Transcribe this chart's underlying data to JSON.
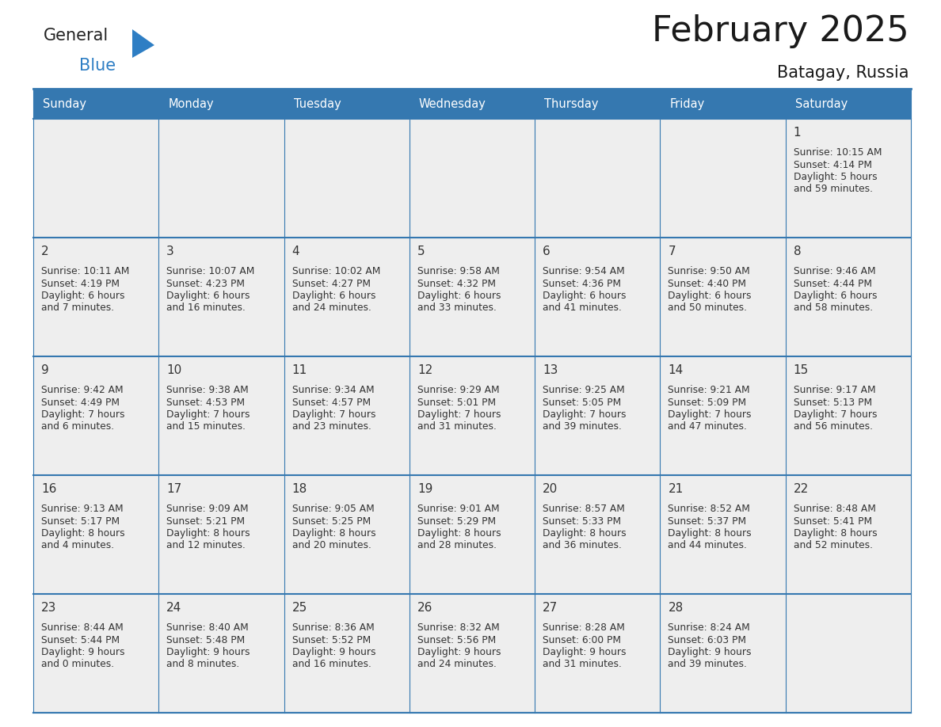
{
  "title": "February 2025",
  "subtitle": "Batagay, Russia",
  "header_color": "#3578b0",
  "header_text_color": "#ffffff",
  "cell_bg_color": "#eeeeee",
  "border_color": "#3578b0",
  "day_number_color": "#333333",
  "text_color": "#333333",
  "days_of_week": [
    "Sunday",
    "Monday",
    "Tuesday",
    "Wednesday",
    "Thursday",
    "Friday",
    "Saturday"
  ],
  "logo_general_color": "#222222",
  "logo_blue_color": "#2e7ec4",
  "logo_triangle_color": "#2e7ec4",
  "weeks": [
    [
      {
        "day": "",
        "info": ""
      },
      {
        "day": "",
        "info": ""
      },
      {
        "day": "",
        "info": ""
      },
      {
        "day": "",
        "info": ""
      },
      {
        "day": "",
        "info": ""
      },
      {
        "day": "",
        "info": ""
      },
      {
        "day": "1",
        "info": "Sunrise: 10:15 AM\nSunset: 4:14 PM\nDaylight: 5 hours\nand 59 minutes."
      }
    ],
    [
      {
        "day": "2",
        "info": "Sunrise: 10:11 AM\nSunset: 4:19 PM\nDaylight: 6 hours\nand 7 minutes."
      },
      {
        "day": "3",
        "info": "Sunrise: 10:07 AM\nSunset: 4:23 PM\nDaylight: 6 hours\nand 16 minutes."
      },
      {
        "day": "4",
        "info": "Sunrise: 10:02 AM\nSunset: 4:27 PM\nDaylight: 6 hours\nand 24 minutes."
      },
      {
        "day": "5",
        "info": "Sunrise: 9:58 AM\nSunset: 4:32 PM\nDaylight: 6 hours\nand 33 minutes."
      },
      {
        "day": "6",
        "info": "Sunrise: 9:54 AM\nSunset: 4:36 PM\nDaylight: 6 hours\nand 41 minutes."
      },
      {
        "day": "7",
        "info": "Sunrise: 9:50 AM\nSunset: 4:40 PM\nDaylight: 6 hours\nand 50 minutes."
      },
      {
        "day": "8",
        "info": "Sunrise: 9:46 AM\nSunset: 4:44 PM\nDaylight: 6 hours\nand 58 minutes."
      }
    ],
    [
      {
        "day": "9",
        "info": "Sunrise: 9:42 AM\nSunset: 4:49 PM\nDaylight: 7 hours\nand 6 minutes."
      },
      {
        "day": "10",
        "info": "Sunrise: 9:38 AM\nSunset: 4:53 PM\nDaylight: 7 hours\nand 15 minutes."
      },
      {
        "day": "11",
        "info": "Sunrise: 9:34 AM\nSunset: 4:57 PM\nDaylight: 7 hours\nand 23 minutes."
      },
      {
        "day": "12",
        "info": "Sunrise: 9:29 AM\nSunset: 5:01 PM\nDaylight: 7 hours\nand 31 minutes."
      },
      {
        "day": "13",
        "info": "Sunrise: 9:25 AM\nSunset: 5:05 PM\nDaylight: 7 hours\nand 39 minutes."
      },
      {
        "day": "14",
        "info": "Sunrise: 9:21 AM\nSunset: 5:09 PM\nDaylight: 7 hours\nand 47 minutes."
      },
      {
        "day": "15",
        "info": "Sunrise: 9:17 AM\nSunset: 5:13 PM\nDaylight: 7 hours\nand 56 minutes."
      }
    ],
    [
      {
        "day": "16",
        "info": "Sunrise: 9:13 AM\nSunset: 5:17 PM\nDaylight: 8 hours\nand 4 minutes."
      },
      {
        "day": "17",
        "info": "Sunrise: 9:09 AM\nSunset: 5:21 PM\nDaylight: 8 hours\nand 12 minutes."
      },
      {
        "day": "18",
        "info": "Sunrise: 9:05 AM\nSunset: 5:25 PM\nDaylight: 8 hours\nand 20 minutes."
      },
      {
        "day": "19",
        "info": "Sunrise: 9:01 AM\nSunset: 5:29 PM\nDaylight: 8 hours\nand 28 minutes."
      },
      {
        "day": "20",
        "info": "Sunrise: 8:57 AM\nSunset: 5:33 PM\nDaylight: 8 hours\nand 36 minutes."
      },
      {
        "day": "21",
        "info": "Sunrise: 8:52 AM\nSunset: 5:37 PM\nDaylight: 8 hours\nand 44 minutes."
      },
      {
        "day": "22",
        "info": "Sunrise: 8:48 AM\nSunset: 5:41 PM\nDaylight: 8 hours\nand 52 minutes."
      }
    ],
    [
      {
        "day": "23",
        "info": "Sunrise: 8:44 AM\nSunset: 5:44 PM\nDaylight: 9 hours\nand 0 minutes."
      },
      {
        "day": "24",
        "info": "Sunrise: 8:40 AM\nSunset: 5:48 PM\nDaylight: 9 hours\nand 8 minutes."
      },
      {
        "day": "25",
        "info": "Sunrise: 8:36 AM\nSunset: 5:52 PM\nDaylight: 9 hours\nand 16 minutes."
      },
      {
        "day": "26",
        "info": "Sunrise: 8:32 AM\nSunset: 5:56 PM\nDaylight: 9 hours\nand 24 minutes."
      },
      {
        "day": "27",
        "info": "Sunrise: 8:28 AM\nSunset: 6:00 PM\nDaylight: 9 hours\nand 31 minutes."
      },
      {
        "day": "28",
        "info": "Sunrise: 8:24 AM\nSunset: 6:03 PM\nDaylight: 9 hours\nand 39 minutes."
      },
      {
        "day": "",
        "info": ""
      }
    ]
  ]
}
